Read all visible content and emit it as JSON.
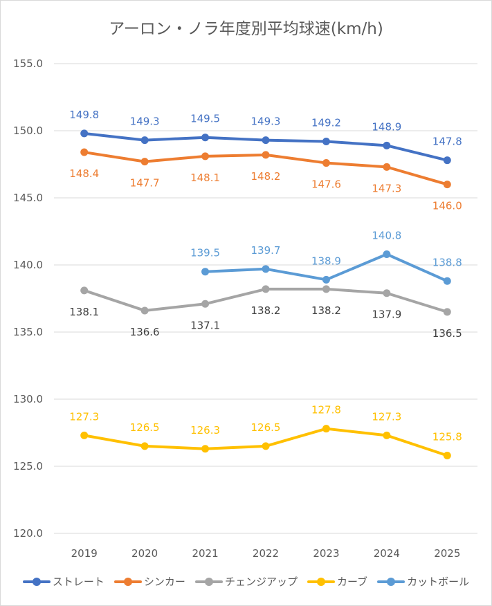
{
  "chart_data": {
    "type": "line",
    "title": "アーロン・ノラ年度別平均球速(km/h)",
    "categories": [
      "2019",
      "2020",
      "2021",
      "2022",
      "2023",
      "2024",
      "2025"
    ],
    "ylim": [
      120,
      155
    ],
    "yticks": [
      "120.0",
      "125.0",
      "130.0",
      "135.0",
      "140.0",
      "145.0",
      "150.0",
      "155.0"
    ],
    "grid": true,
    "legend_position": "bottom",
    "series": [
      {
        "name": "ストレート",
        "color": "#4472c4",
        "label_pos": "above",
        "values": [
          149.8,
          149.3,
          149.5,
          149.3,
          149.2,
          148.9,
          147.8
        ]
      },
      {
        "name": "シンカー",
        "color": "#ed7d31",
        "label_pos": "below",
        "values": [
          148.4,
          147.7,
          148.1,
          148.2,
          147.6,
          147.3,
          146.0
        ]
      },
      {
        "name": "チェンジアップ",
        "color": "#a5a5a5",
        "label_pos": "below",
        "values": [
          138.1,
          136.6,
          137.1,
          138.2,
          138.2,
          137.9,
          136.5
        ]
      },
      {
        "name": "カーブ",
        "color": "#ffc000",
        "label_pos": "above",
        "values": [
          127.3,
          126.5,
          126.3,
          126.5,
          127.8,
          127.3,
          125.8
        ]
      },
      {
        "name": "カットボール",
        "color": "#5b9bd5",
        "label_pos": "above",
        "values": [
          null,
          null,
          139.5,
          139.7,
          138.9,
          140.8,
          138.8
        ]
      }
    ]
  }
}
